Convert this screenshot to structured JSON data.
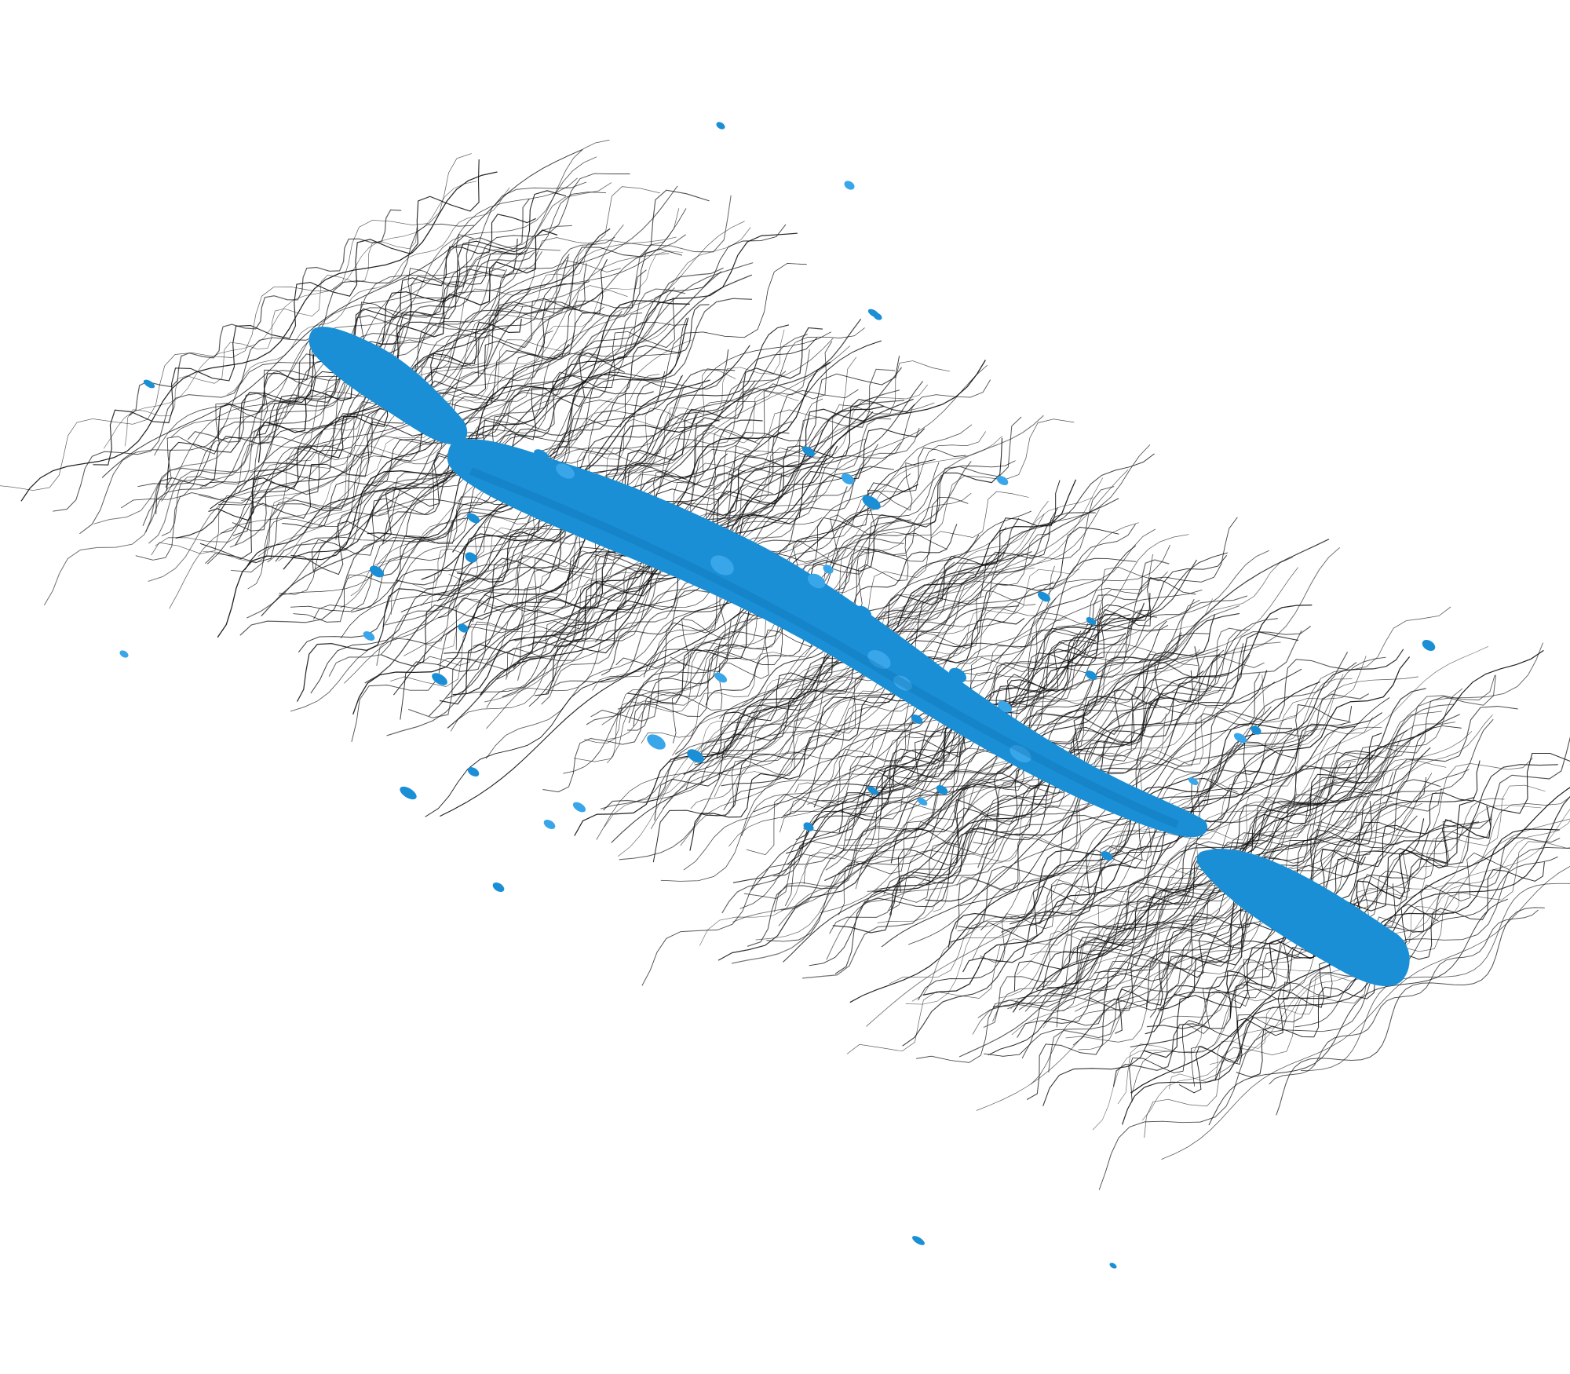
{
  "scene": {
    "background_color": "#ffffff",
    "streamline_color": "#111111",
    "isosurface_color": "#1a8fd6",
    "isosurface_highlight": "#3aa6ea",
    "isosurface_shadow": "#0f6fb0"
  }
}
